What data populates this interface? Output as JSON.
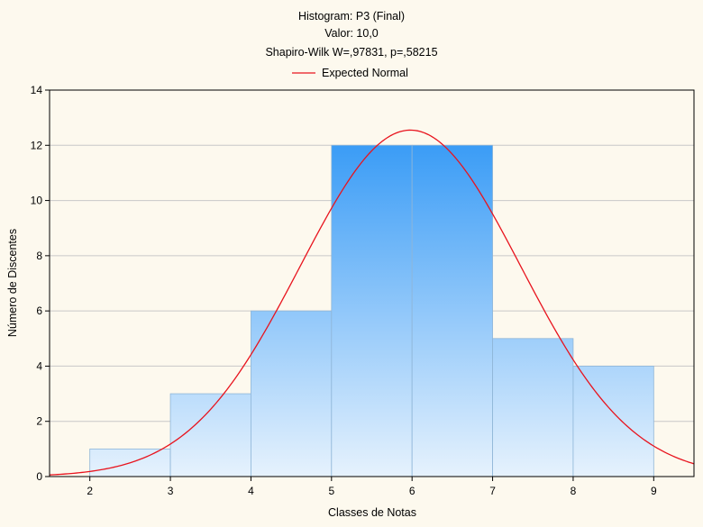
{
  "chart_data": {
    "type": "bar",
    "title_lines": [
      "Histogram: P3 (Final)",
      "Valor: 10,0",
      "Shapiro-Wilk W=,97831, p=,58215"
    ],
    "xlabel": "Classes de Notas",
    "ylabel": "Número de Discentes",
    "xlim": [
      1.5,
      9.5
    ],
    "ylim": [
      0,
      14
    ],
    "x_ticks": [
      "2",
      "3",
      "4",
      "5",
      "6",
      "7",
      "8",
      "9"
    ],
    "y_ticks": [
      "0",
      "2",
      "4",
      "6",
      "8",
      "10",
      "12",
      "14"
    ],
    "bins": [
      {
        "from": 2,
        "to": 3,
        "count": 1
      },
      {
        "from": 3,
        "to": 4,
        "count": 3
      },
      {
        "from": 4,
        "to": 5,
        "count": 6
      },
      {
        "from": 5,
        "to": 6,
        "count": 12
      },
      {
        "from": 6,
        "to": 7,
        "count": 12
      },
      {
        "from": 7,
        "to": 8,
        "count": 5
      },
      {
        "from": 8,
        "to": 9,
        "count": 4
      }
    ],
    "expected_normal": {
      "name": "Expected Normal",
      "mean": 5.98,
      "sd": 1.37,
      "peak": 12.55,
      "color": "#e8141e"
    },
    "grid": true,
    "legend": "top-center",
    "colors": {
      "bar_top": "#1e8ef5",
      "bar_bottom": "#e6f2fd",
      "bar_edge": "#8fb6d8",
      "axis": "#000000",
      "grid": "#c8c8c8"
    }
  }
}
